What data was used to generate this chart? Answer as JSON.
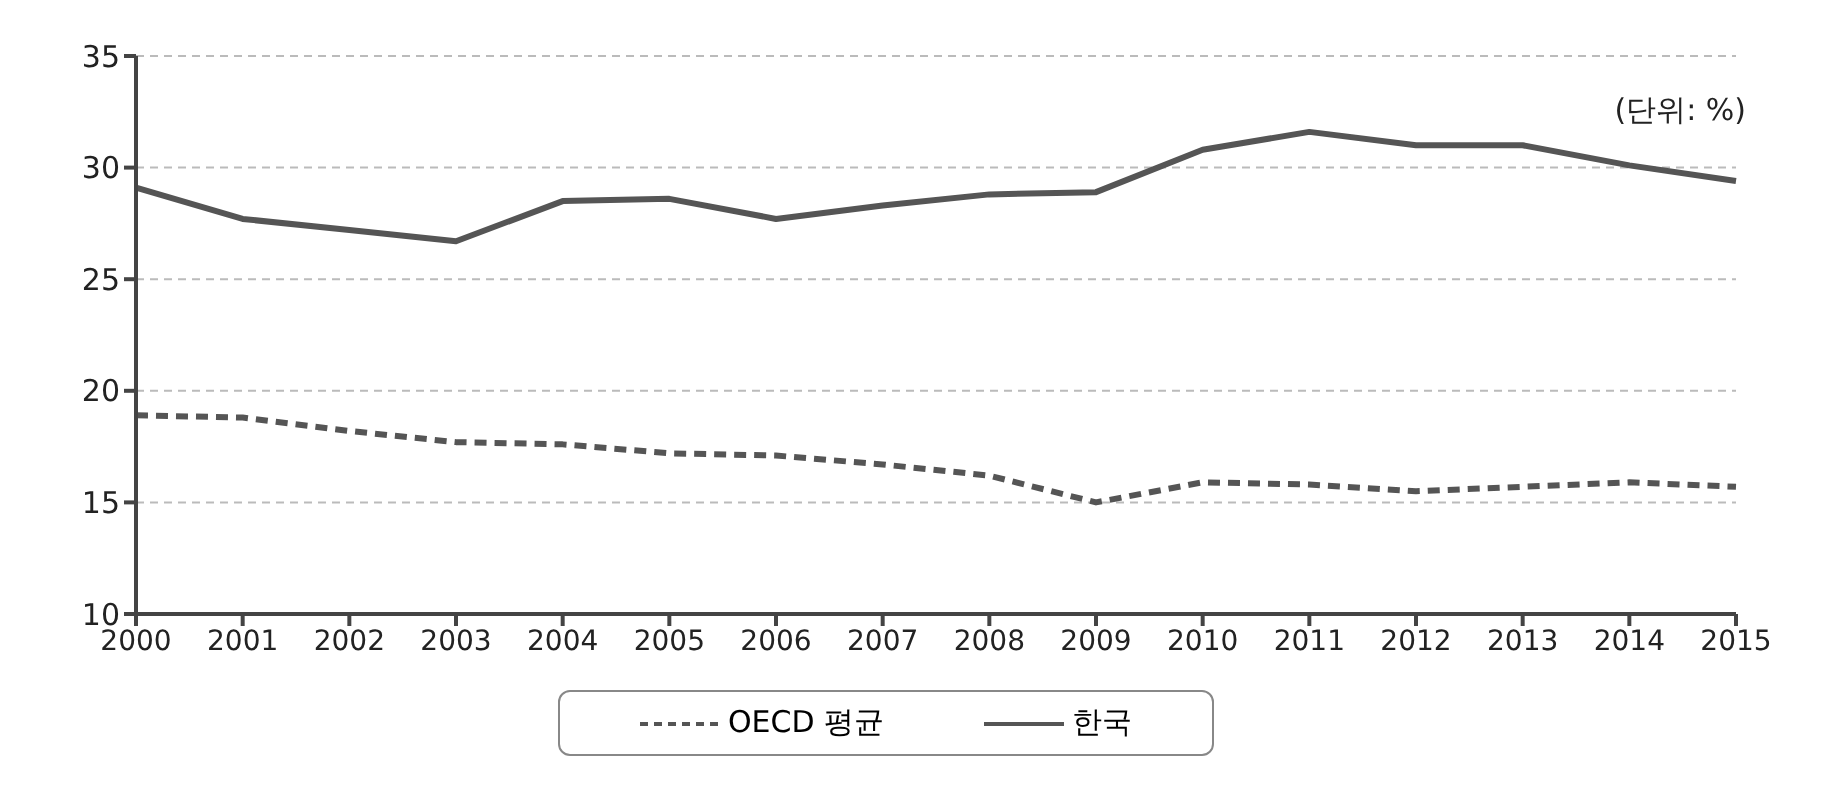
{
  "chart_data": {
    "type": "line",
    "categories": [
      "2000",
      "2001",
      "2002",
      "2003",
      "2004",
      "2005",
      "2006",
      "2007",
      "2008",
      "2009",
      "2010",
      "2011",
      "2012",
      "2013",
      "2014",
      "2015"
    ],
    "series": [
      {
        "name": "OECD 평균",
        "color": "#555555",
        "line_style": "dashed",
        "values": [
          18.9,
          18.8,
          18.2,
          17.7,
          17.6,
          17.2,
          17.1,
          16.7,
          16.2,
          15.0,
          15.9,
          15.8,
          15.5,
          15.7,
          15.9,
          15.7
        ]
      },
      {
        "name": "한국",
        "color": "#555555",
        "line_style": "solid",
        "values": [
          29.1,
          27.7,
          27.2,
          26.7,
          28.5,
          28.6,
          27.7,
          28.3,
          28.8,
          28.9,
          30.8,
          31.6,
          31.0,
          31.0,
          30.1,
          29.4
        ]
      }
    ],
    "ylim": [
      10,
      35
    ],
    "yticks": [
      10,
      15,
      20,
      25,
      30,
      35
    ],
    "grid": "y",
    "legend": "bottom",
    "marker": "none",
    "annotations": [
      "(단위: %)"
    ]
  }
}
